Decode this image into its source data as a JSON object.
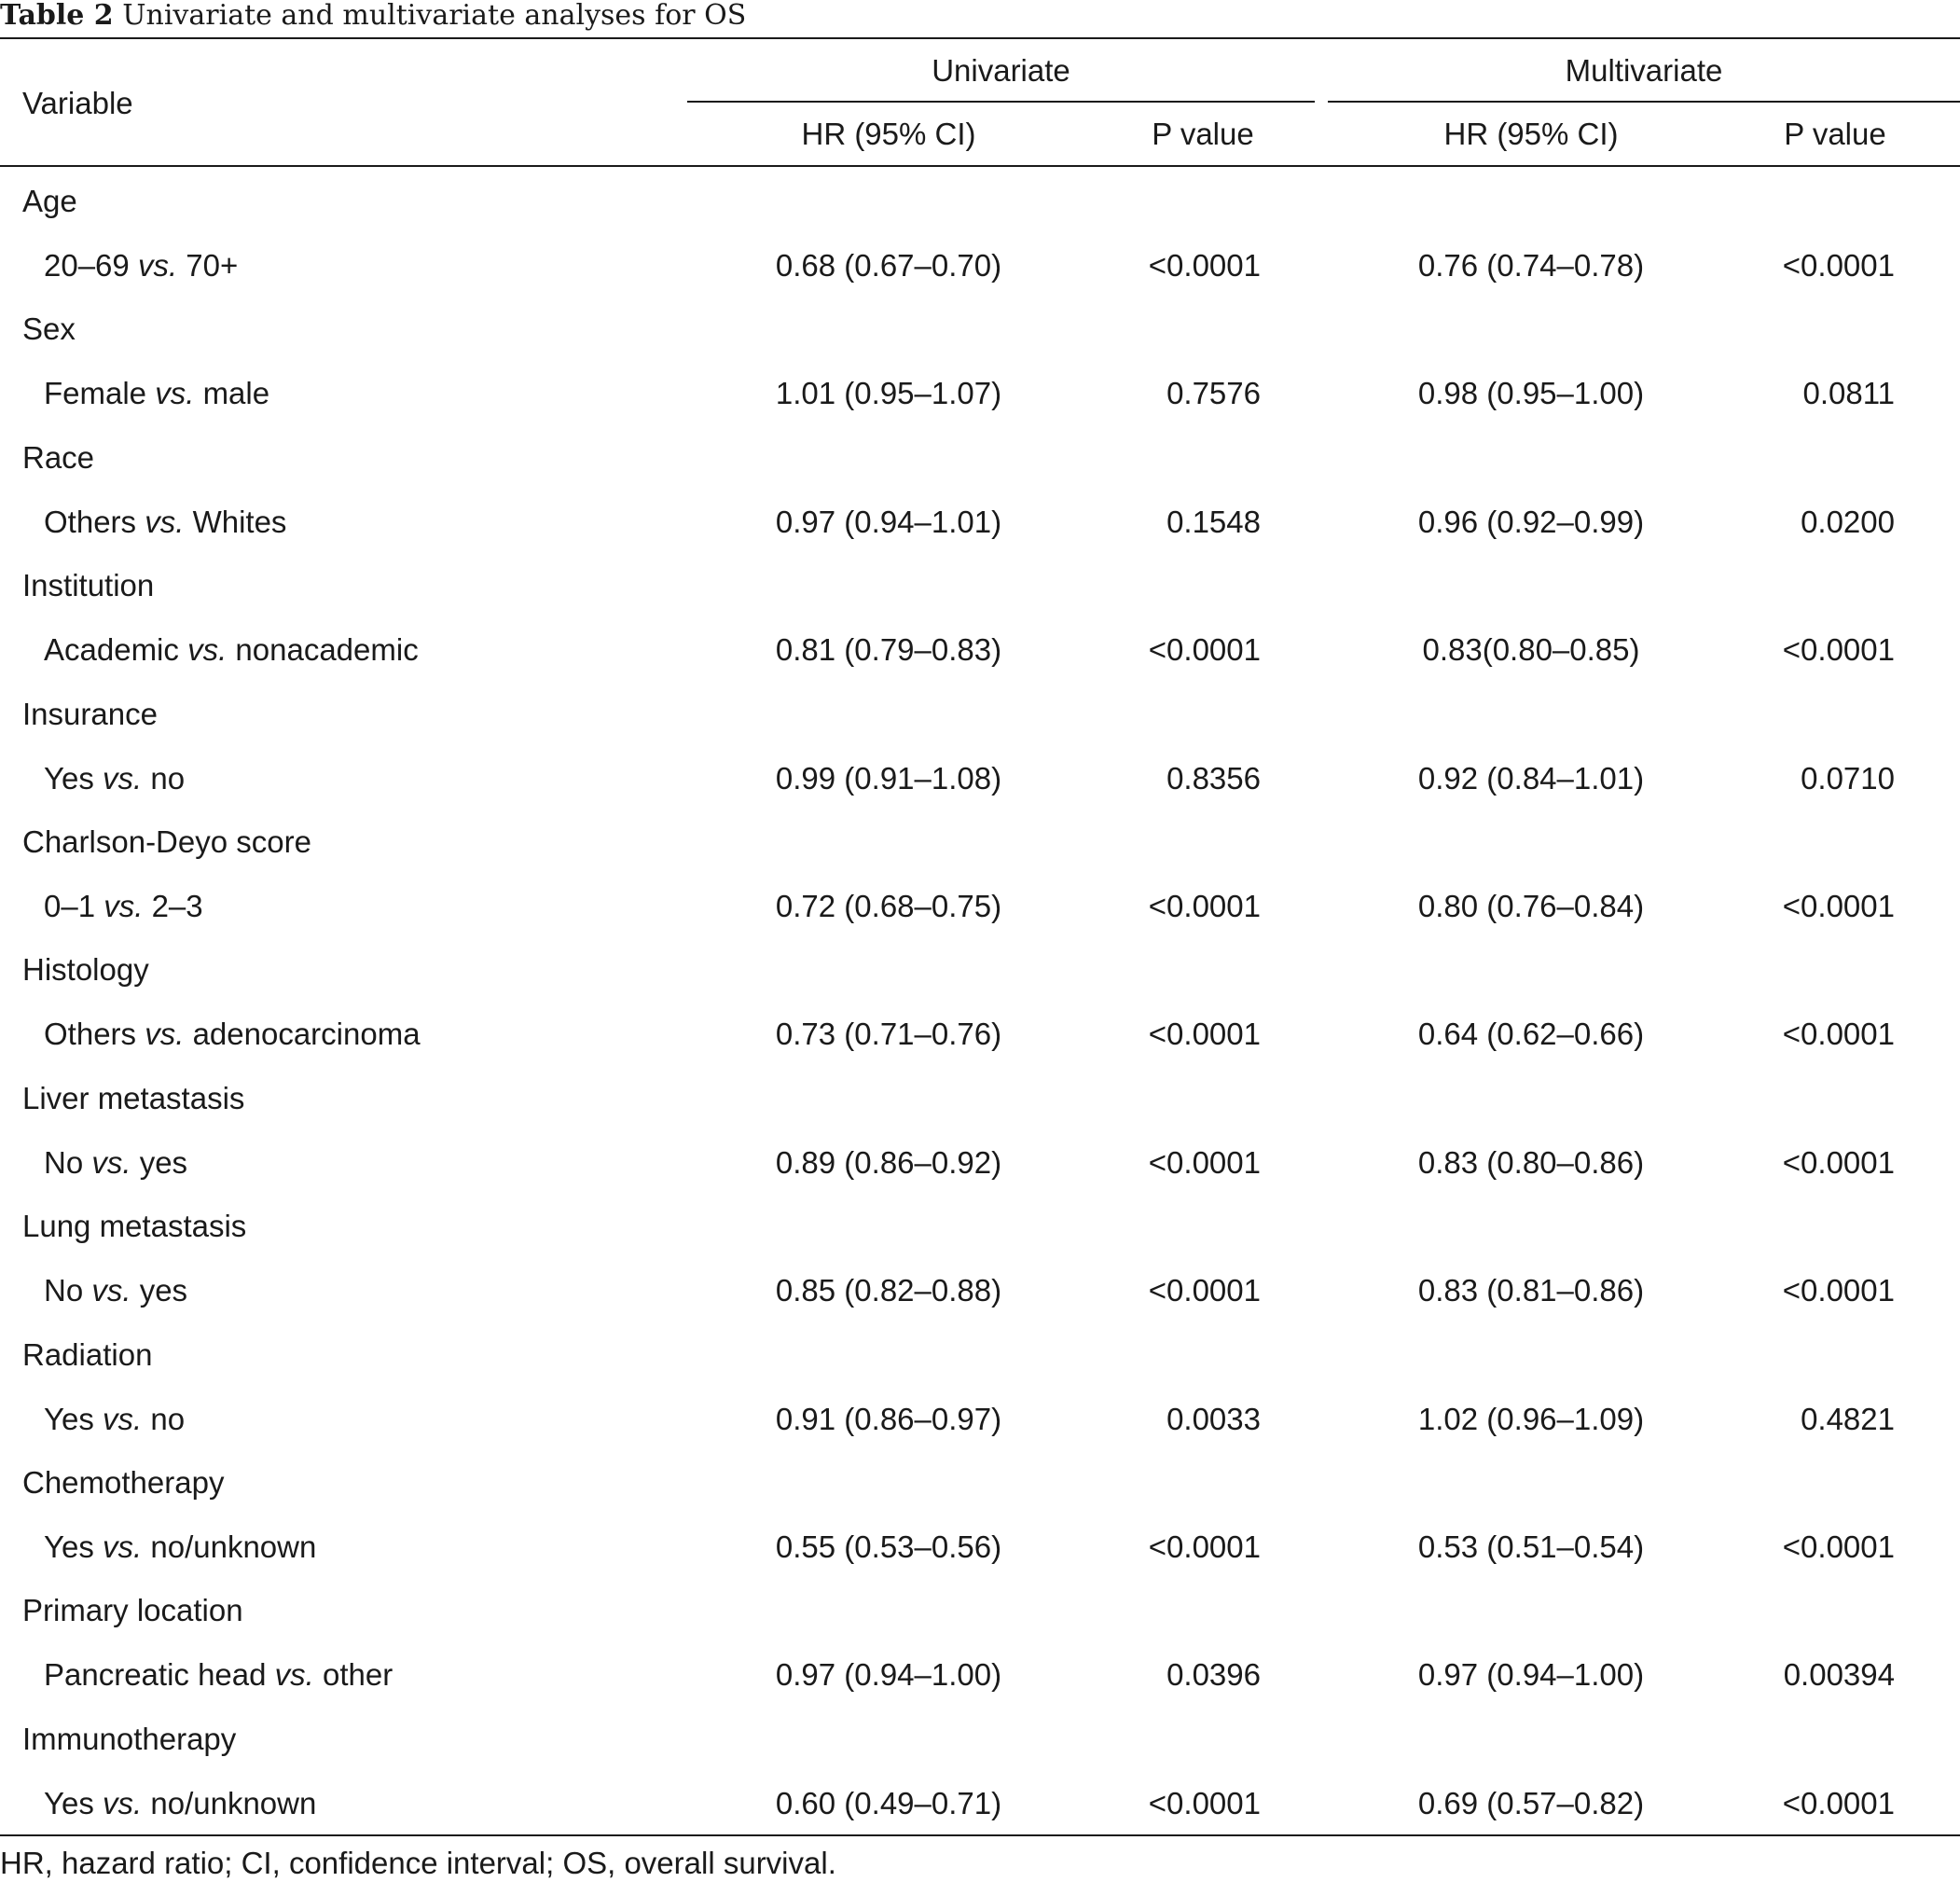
{
  "caption": {
    "label": "Table 2",
    "title": "Univariate and multivariate analyses for OS"
  },
  "header": {
    "variable": "Variable",
    "univariate": "Univariate",
    "multivariate": "Multivariate",
    "hr": "HR (95% CI)",
    "p": "P value"
  },
  "groups": [
    {
      "name": "Age",
      "level": "20–69",
      "vs": "vs.",
      "ref": "70+",
      "uni_hr": "0.68 (0.67–0.70)",
      "uni_p": "<0.0001",
      "multi_hr": "0.76 (0.74–0.78)",
      "multi_p": "<0.0001"
    },
    {
      "name": "Sex",
      "level": "Female",
      "vs": "vs.",
      "ref": "male",
      "uni_hr": "1.01 (0.95–1.07)",
      "uni_p": "0.7576",
      "multi_hr": "0.98 (0.95–1.00)",
      "multi_p": "0.0811"
    },
    {
      "name": "Race",
      "level": "Others",
      "vs": "vs.",
      "ref": "Whites",
      "uni_hr": "0.97 (0.94–1.01)",
      "uni_p": "0.1548",
      "multi_hr": "0.96 (0.92–0.99)",
      "multi_p": "0.0200"
    },
    {
      "name": "Institution",
      "level": "Academic",
      "vs": "vs.",
      "ref": "nonacademic",
      "uni_hr": "0.81 (0.79–0.83)",
      "uni_p": "<0.0001",
      "multi_hr": "0.83(0.80–0.85)",
      "multi_p": "<0.0001"
    },
    {
      "name": "Insurance",
      "level": "Yes",
      "vs": "vs.",
      "ref": "no",
      "uni_hr": "0.99 (0.91–1.08)",
      "uni_p": "0.8356",
      "multi_hr": "0.92 (0.84–1.01)",
      "multi_p": "0.0710"
    },
    {
      "name": "Charlson-Deyo score",
      "level": "0–1",
      "vs": "vs.",
      "ref": "2–3",
      "uni_hr": "0.72 (0.68–0.75)",
      "uni_p": "<0.0001",
      "multi_hr": "0.80 (0.76–0.84)",
      "multi_p": "<0.0001"
    },
    {
      "name": "Histology",
      "level": "Others",
      "vs": "vs.",
      "ref": "adenocarcinoma",
      "uni_hr": "0.73 (0.71–0.76)",
      "uni_p": "<0.0001",
      "multi_hr": "0.64 (0.62–0.66)",
      "multi_p": "<0.0001"
    },
    {
      "name": "Liver metastasis",
      "level": "No",
      "vs": "vs.",
      "ref": "yes",
      "uni_hr": "0.89 (0.86–0.92)",
      "uni_p": "<0.0001",
      "multi_hr": "0.83 (0.80–0.86)",
      "multi_p": "<0.0001"
    },
    {
      "name": "Lung metastasis",
      "level": "No",
      "vs": "vs.",
      "ref": "yes",
      "uni_hr": "0.85 (0.82–0.88)",
      "uni_p": "<0.0001",
      "multi_hr": "0.83 (0.81–0.86)",
      "multi_p": "<0.0001"
    },
    {
      "name": "Radiation",
      "level": "Yes",
      "vs": "vs.",
      "ref": "no",
      "uni_hr": "0.91 (0.86–0.97)",
      "uni_p": "0.0033",
      "multi_hr": "1.02 (0.96–1.09)",
      "multi_p": "0.4821"
    },
    {
      "name": "Chemotherapy",
      "level": "Yes",
      "vs": "vs.",
      "ref": "no/unknown",
      "uni_hr": "0.55 (0.53–0.56)",
      "uni_p": "<0.0001",
      "multi_hr": "0.53 (0.51–0.54)",
      "multi_p": "<0.0001"
    },
    {
      "name": "Primary location",
      "level": "Pancreatic head",
      "vs": "vs.",
      "ref": "other",
      "uni_hr": "0.97 (0.94–1.00)",
      "uni_p": "0.0396",
      "multi_hr": "0.97 (0.94–1.00)",
      "multi_p": "0.00394"
    },
    {
      "name": "Immunotherapy",
      "level": "Yes",
      "vs": "vs.",
      "ref": "no/unknown",
      "uni_hr": "0.60 (0.49–0.71)",
      "uni_p": "<0.0001",
      "multi_hr": "0.69 (0.57–0.82)",
      "multi_p": "<0.0001"
    }
  ],
  "footnote": "HR, hazard ratio; CI, confidence interval; OS, overall survival."
}
